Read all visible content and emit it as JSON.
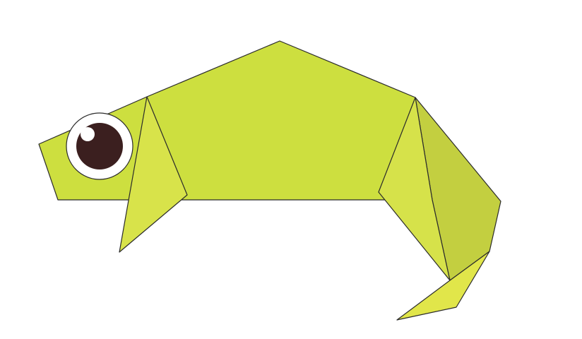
{
  "illustration": {
    "subject": "origami-chameleon",
    "colors": {
      "background": "#ffffff",
      "outline": "#2b2b2b",
      "body": "#cddf3f",
      "front_leg": "#d8e34a",
      "back_leg": "#d6e24a",
      "tail_upper": "#c3cf40",
      "tail_tip": "#e1e64a",
      "eye_white": "#ffffff",
      "pupil": "#3b1f1f",
      "eye_highlight": "#ffffff"
    },
    "icons": [
      "chameleon-body-icon",
      "chameleon-eye-icon"
    ]
  }
}
